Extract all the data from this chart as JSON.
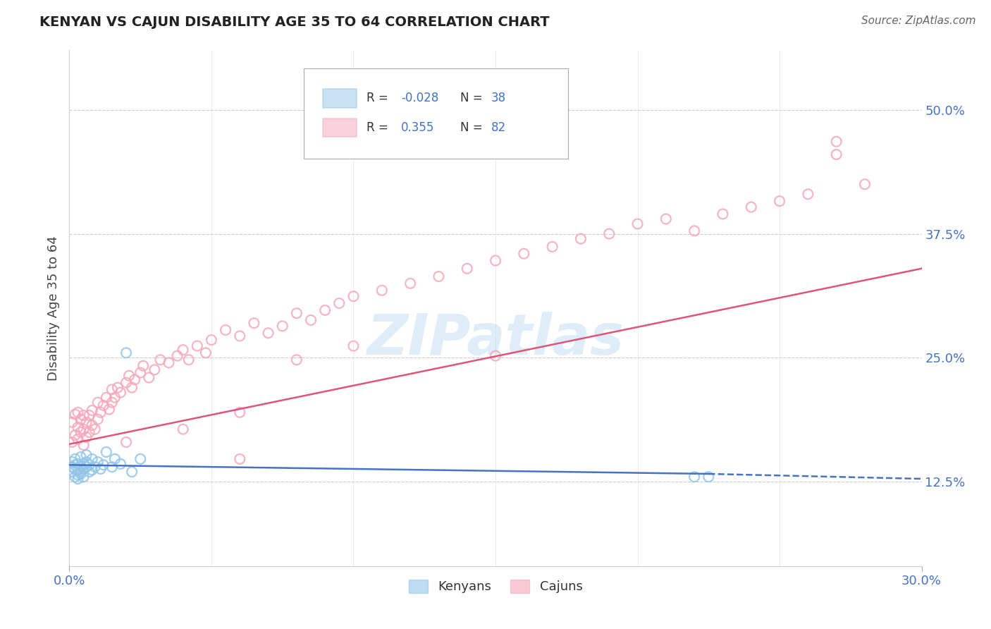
{
  "title": "KENYAN VS CAJUN DISABILITY AGE 35 TO 64 CORRELATION CHART",
  "source": "Source: ZipAtlas.com",
  "ylabel": "Disability Age 35 to 64",
  "xlim": [
    0.0,
    0.3
  ],
  "ylim": [
    0.04,
    0.56
  ],
  "y_ticks": [
    0.125,
    0.25,
    0.375,
    0.5
  ],
  "y_tick_labels": [
    "12.5%",
    "25.0%",
    "37.5%",
    "50.0%"
  ],
  "kenyan_color": "#92c5e8",
  "cajun_color": "#f4a8ba",
  "kenyan_line_color": "#4472c4",
  "cajun_line_color": "#e05577",
  "kenyan_R": -0.028,
  "kenyan_N": 38,
  "cajun_R": 0.355,
  "cajun_N": 82,
  "kenyan_x": [
    0.001,
    0.001,
    0.001,
    0.002,
    0.002,
    0.002,
    0.002,
    0.003,
    0.003,
    0.003,
    0.003,
    0.004,
    0.004,
    0.004,
    0.004,
    0.005,
    0.005,
    0.005,
    0.006,
    0.006,
    0.006,
    0.007,
    0.007,
    0.008,
    0.008,
    0.009,
    0.01,
    0.011,
    0.012,
    0.013,
    0.015,
    0.016,
    0.018,
    0.02,
    0.022,
    0.025,
    0.22,
    0.225
  ],
  "kenyan_y": [
    0.14,
    0.135,
    0.145,
    0.13,
    0.138,
    0.142,
    0.148,
    0.132,
    0.137,
    0.143,
    0.128,
    0.135,
    0.141,
    0.133,
    0.15,
    0.138,
    0.143,
    0.13,
    0.145,
    0.14,
    0.152,
    0.135,
    0.142,
    0.137,
    0.148,
    0.14,
    0.145,
    0.138,
    0.142,
    0.155,
    0.14,
    0.148,
    0.143,
    0.255,
    0.135,
    0.148,
    0.13,
    0.13
  ],
  "cajun_x": [
    0.001,
    0.001,
    0.002,
    0.002,
    0.003,
    0.003,
    0.003,
    0.004,
    0.004,
    0.005,
    0.005,
    0.005,
    0.006,
    0.006,
    0.007,
    0.007,
    0.008,
    0.008,
    0.009,
    0.01,
    0.01,
    0.011,
    0.012,
    0.013,
    0.014,
    0.015,
    0.015,
    0.016,
    0.017,
    0.018,
    0.02,
    0.021,
    0.022,
    0.023,
    0.025,
    0.026,
    0.028,
    0.03,
    0.032,
    0.035,
    0.038,
    0.04,
    0.042,
    0.045,
    0.048,
    0.05,
    0.055,
    0.06,
    0.065,
    0.07,
    0.075,
    0.08,
    0.085,
    0.09,
    0.095,
    0.1,
    0.11,
    0.12,
    0.13,
    0.14,
    0.15,
    0.16,
    0.17,
    0.18,
    0.19,
    0.2,
    0.21,
    0.22,
    0.23,
    0.24,
    0.25,
    0.26,
    0.27,
    0.27,
    0.15,
    0.1,
    0.08,
    0.06,
    0.04,
    0.02,
    0.28,
    0.06
  ],
  "cajun_y": [
    0.165,
    0.185,
    0.172,
    0.193,
    0.168,
    0.18,
    0.195,
    0.175,
    0.188,
    0.162,
    0.178,
    0.192,
    0.17,
    0.185,
    0.175,
    0.192,
    0.182,
    0.197,
    0.178,
    0.188,
    0.205,
    0.195,
    0.202,
    0.21,
    0.198,
    0.205,
    0.218,
    0.21,
    0.22,
    0.215,
    0.225,
    0.232,
    0.22,
    0.228,
    0.235,
    0.242,
    0.23,
    0.238,
    0.248,
    0.245,
    0.252,
    0.258,
    0.248,
    0.262,
    0.255,
    0.268,
    0.278,
    0.272,
    0.285,
    0.275,
    0.282,
    0.295,
    0.288,
    0.298,
    0.305,
    0.312,
    0.318,
    0.325,
    0.332,
    0.34,
    0.348,
    0.355,
    0.362,
    0.37,
    0.375,
    0.385,
    0.39,
    0.378,
    0.395,
    0.402,
    0.408,
    0.415,
    0.468,
    0.455,
    0.252,
    0.262,
    0.248,
    0.195,
    0.178,
    0.165,
    0.425,
    0.148
  ],
  "watermark": "ZIPatlas",
  "background_color": "#ffffff",
  "grid_color": "#cccccc"
}
